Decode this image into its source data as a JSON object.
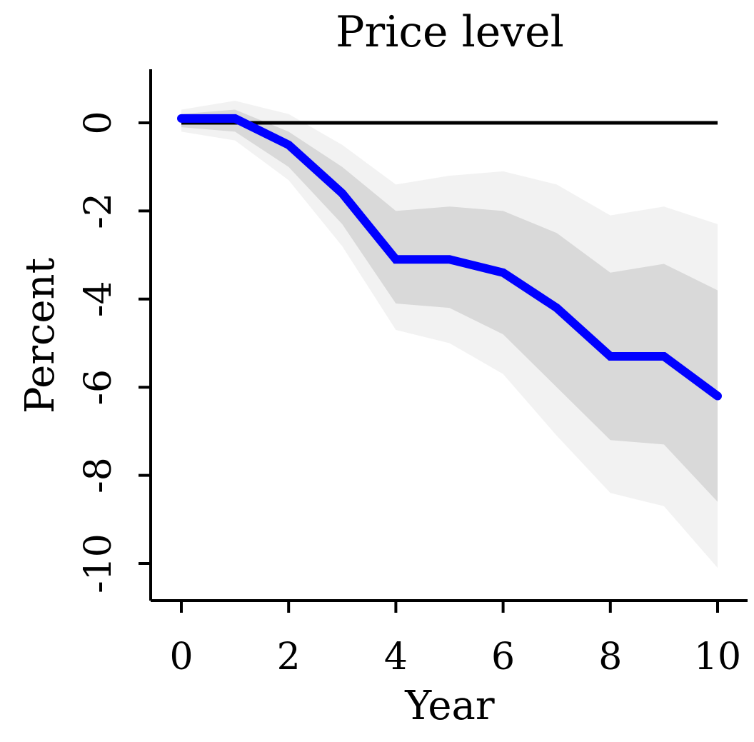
{
  "chart_data": {
    "type": "line",
    "title": "Price level",
    "xlabel": "Year",
    "ylabel": "Percent",
    "xlim": [
      0,
      10
    ],
    "ylim": [
      -10,
      0
    ],
    "x_ticks": [
      "0",
      "2",
      "4",
      "6",
      "8",
      "10"
    ],
    "y_ticks": [
      "0",
      "-2",
      "-4",
      "-6",
      "-8",
      "-10"
    ],
    "grid": false,
    "legend": "none",
    "x": [
      0,
      1,
      2,
      3,
      4,
      5,
      6,
      7,
      8,
      9,
      10
    ],
    "series": [
      {
        "values": [
          0.1,
          0.1,
          -0.5,
          -1.6,
          -3.1,
          -3.1,
          -3.4,
          -4.2,
          -5.3,
          -5.3,
          -6.2
        ]
      }
    ],
    "bands": {
      "inner": {
        "upper": [
          0.2,
          0.3,
          -0.2,
          -1.0,
          -2.0,
          -1.9,
          -2.0,
          -2.5,
          -3.4,
          -3.2,
          -3.8
        ],
        "lower": [
          -0.1,
          -0.2,
          -1.0,
          -2.3,
          -4.1,
          -4.2,
          -4.8,
          -6.0,
          -7.2,
          -7.3,
          -8.6
        ]
      },
      "outer": {
        "upper": [
          0.3,
          0.5,
          0.2,
          -0.5,
          -1.4,
          -1.2,
          -1.1,
          -1.4,
          -2.1,
          -1.9,
          -2.3
        ],
        "lower": [
          -0.2,
          -0.4,
          -1.3,
          -2.8,
          -4.7,
          -5.0,
          -5.7,
          -7.1,
          -8.4,
          -8.7,
          -10.1
        ]
      }
    },
    "reference_line": 0,
    "colors": {
      "line": "#0000ff",
      "inner_band": "#d9d9d9",
      "outer_band": "#f2f2f2",
      "zero_line": "#000000"
    }
  }
}
